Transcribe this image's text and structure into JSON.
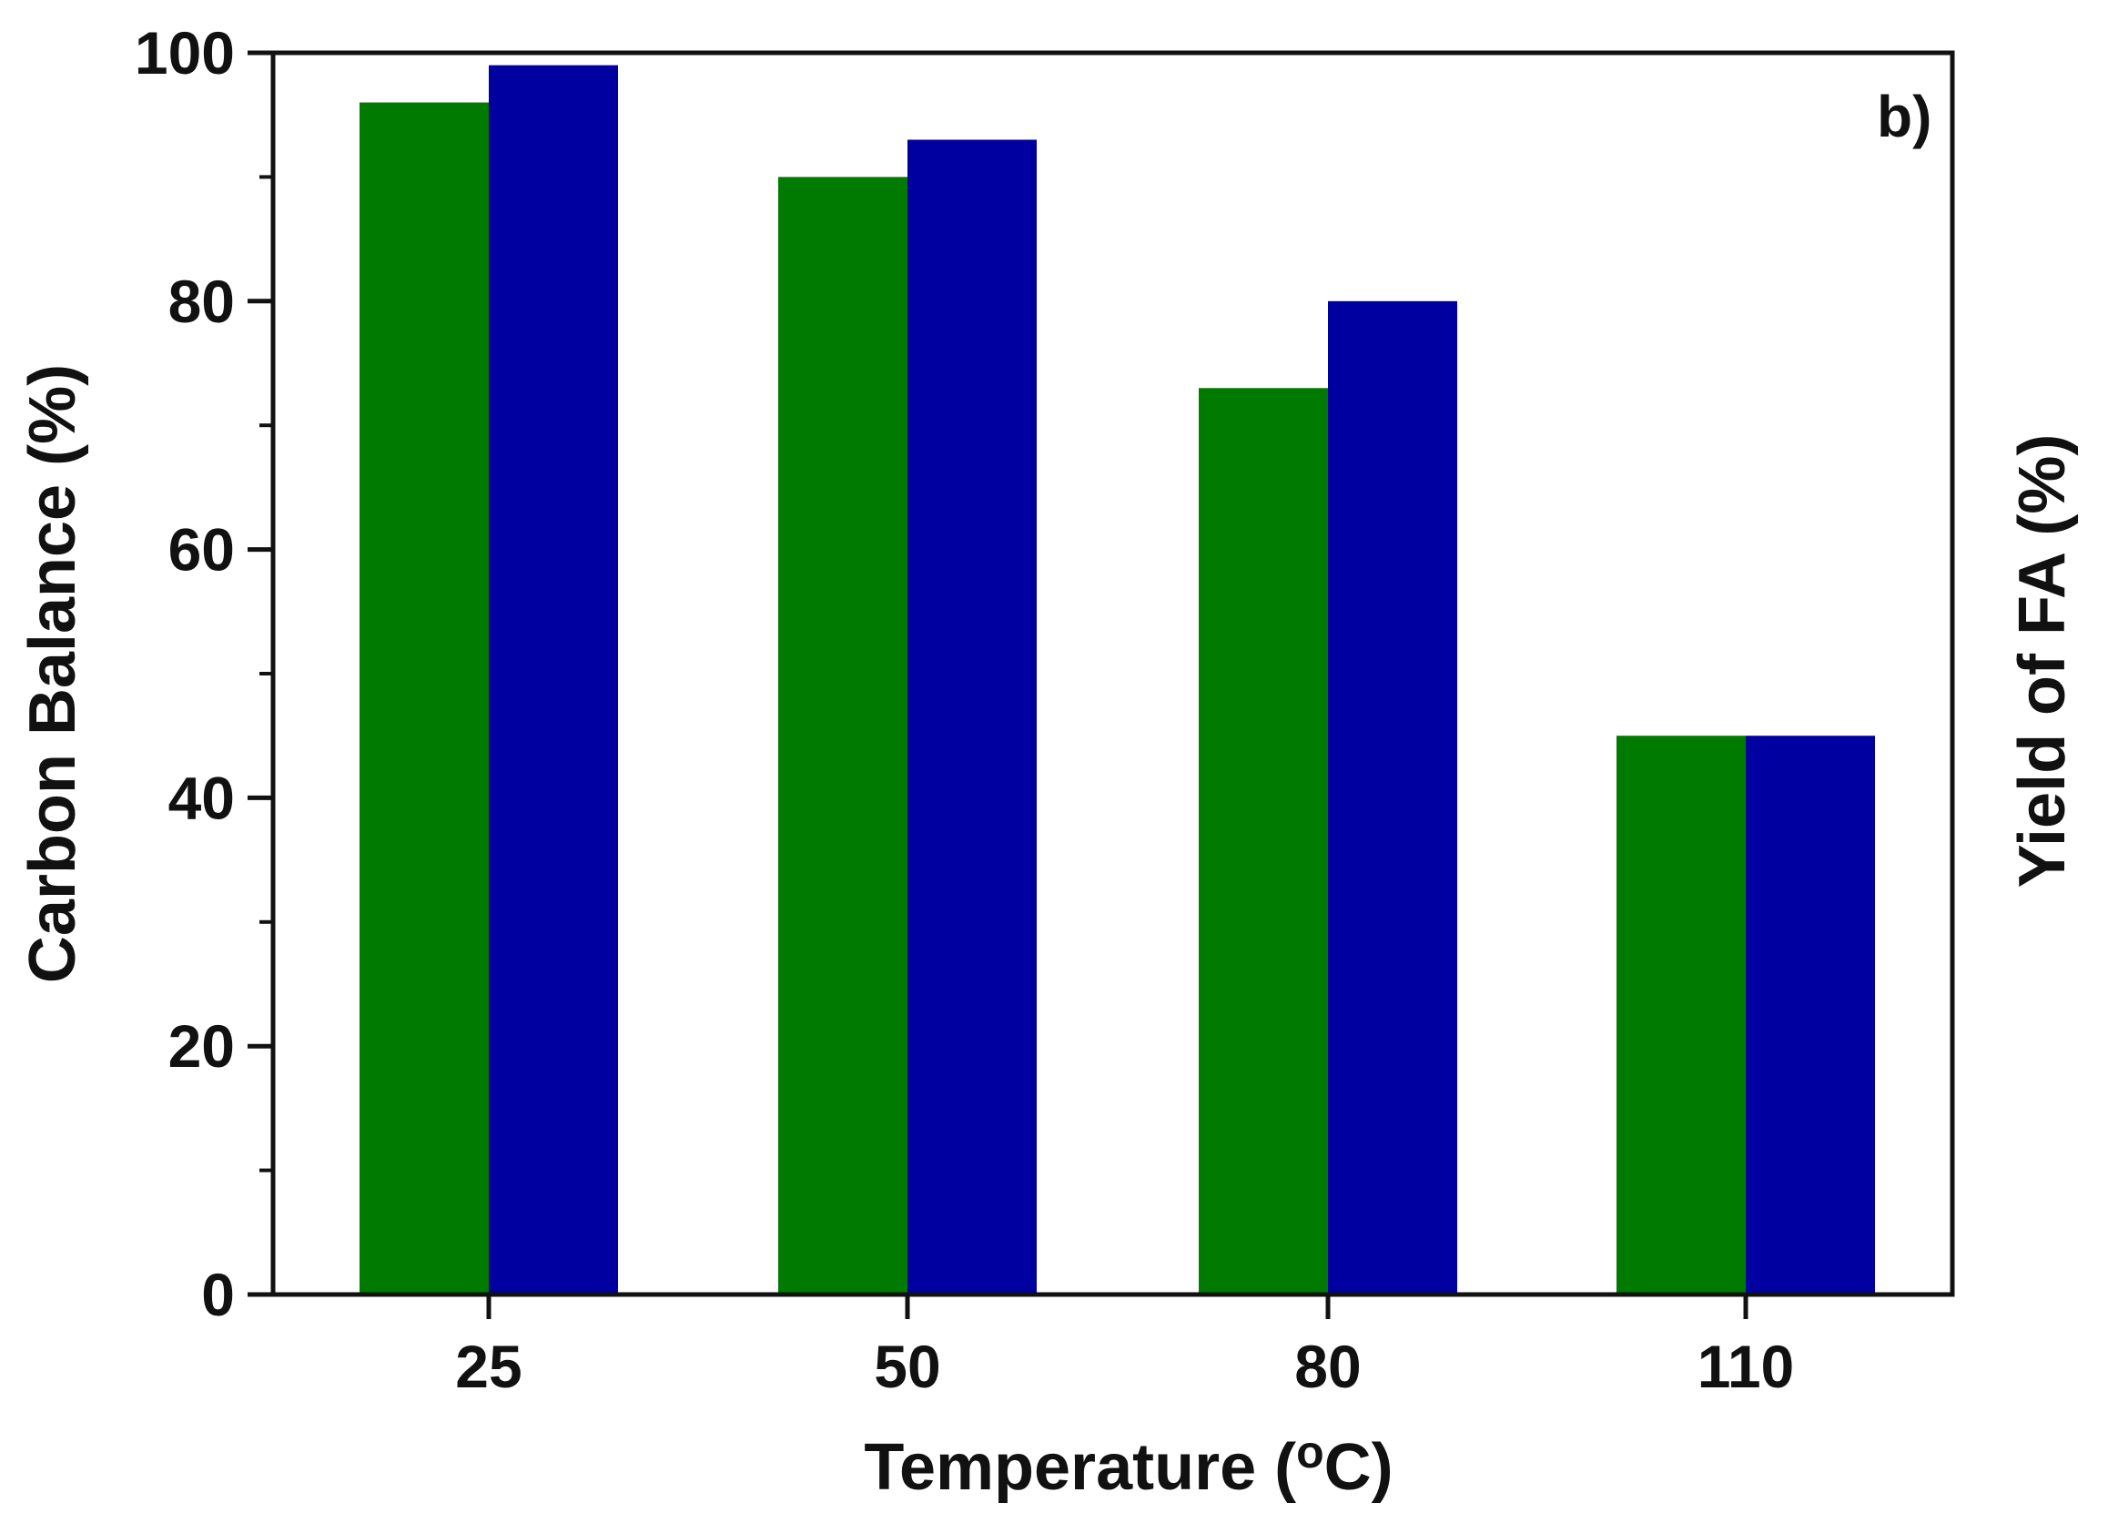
{
  "chart_data": {
    "type": "bar",
    "panel_label": "b)",
    "xlabel": {
      "main": "Temperature (",
      "superscript": "o",
      "unit": "C)"
    },
    "ylabel_left": "Carbon Balance (%)",
    "ylabel_right": "Yield of FA (%)",
    "categories": [
      "25",
      "50",
      "80",
      "110"
    ],
    "ylim": [
      0,
      100
    ],
    "yticks": [
      0,
      20,
      40,
      60,
      80,
      100
    ],
    "series": [
      {
        "color": "#007a00",
        "values": [
          96,
          90,
          73,
          45
        ]
      },
      {
        "color": "#0000a0",
        "values": [
          99,
          93,
          80,
          45
        ]
      }
    ],
    "grid": false
  }
}
